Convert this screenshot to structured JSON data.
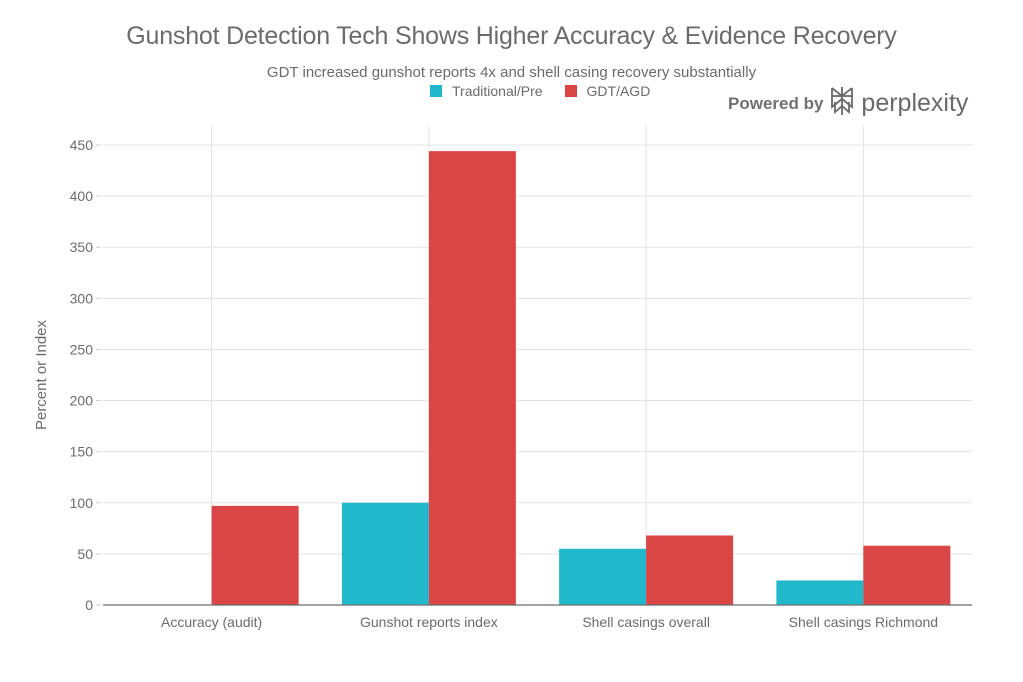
{
  "chart_data": {
    "type": "bar",
    "title": "Gunshot Detection Tech Shows Higher Accuracy & Evidence Recovery",
    "subtitle": "GDT increased gunshot reports 4x and shell casing recovery substantially",
    "xlabel": "",
    "ylabel": "Percent or Index",
    "ylim": [
      0,
      450
    ],
    "yticks": [
      0,
      50,
      100,
      150,
      200,
      250,
      300,
      350,
      400,
      450
    ],
    "grid": true,
    "legend_position": "top-center",
    "categories": [
      "Accuracy (audit)",
      "Gunshot reports index",
      "Shell casings overall",
      "Shell casings Richmond"
    ],
    "series": [
      {
        "name": "Traditional/Pre",
        "color": "#21b8cc",
        "values": [
          0,
          100,
          55,
          24
        ]
      },
      {
        "name": "GDT/AGD",
        "color": "#da4646",
        "values": [
          97,
          444,
          68,
          58
        ]
      }
    ]
  },
  "branding": {
    "powered_by": "Powered by",
    "name": "perplexity"
  }
}
